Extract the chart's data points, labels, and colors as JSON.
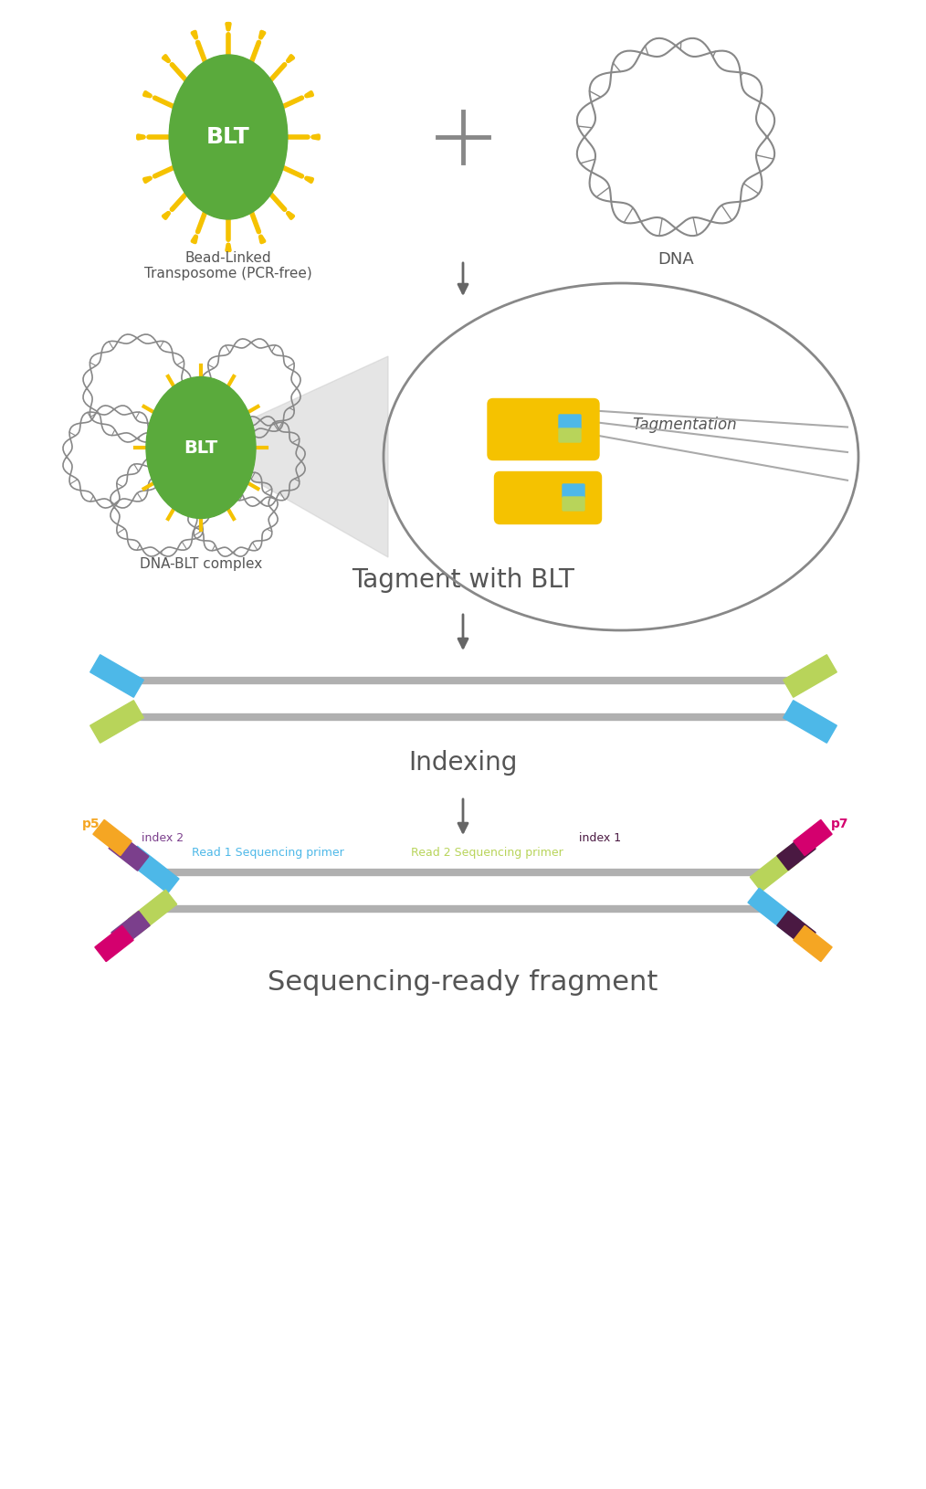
{
  "bg_color": "#ffffff",
  "green_color": "#5aaa3c",
  "yellow_color": "#f5c200",
  "gray_color": "#888888",
  "blue_color": "#4db8e8",
  "light_green_color": "#b8d45a",
  "orange_color": "#f5a623",
  "purple_color": "#7b3f8c",
  "magenta_color": "#d4006e",
  "dark_purple_color": "#4a1942",
  "arrow_color": "#666666",
  "text_color": "#555555",
  "label_blt": "BLT",
  "label_bead": "Bead-Linked\nTransposome (PCR-free)",
  "label_dna": "DNA",
  "label_complex": "DNA-BLT complex",
  "label_tagmentation": "Tagmentation",
  "label_tagment": "Tagment with BLT",
  "label_indexing": "Indexing",
  "label_seq_ready": "Sequencing-ready fragment",
  "label_p5": "p5",
  "label_p7": "p7",
  "label_index1": "index 1",
  "label_index2": "index 2",
  "label_read1": "Read 1 Sequencing primer",
  "label_read2": "Read 2 Sequencing primer"
}
